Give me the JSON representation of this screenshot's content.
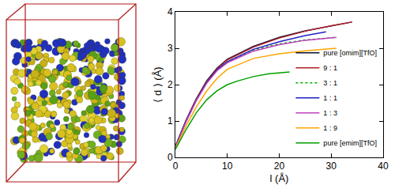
{
  "chart_data": {
    "type": "line",
    "x_label": "l (Å)",
    "y_label": "⟨ d ⟩ (Å)",
    "xlim": [
      0,
      40
    ],
    "xticks": [
      0,
      10,
      20,
      30,
      40
    ],
    "ylim": [
      0,
      4
    ],
    "yticks": [
      0,
      1,
      2,
      3,
      4
    ],
    "grid": false,
    "legend": "lower right",
    "series": [
      {
        "name": "pure [omim][TfO]",
        "color": "#101030",
        "line_style": "solid",
        "x": [
          0,
          2,
          4,
          6,
          8,
          10,
          15,
          20,
          25,
          30,
          34
        ],
        "values": [
          0.3,
          1.0,
          1.6,
          2.1,
          2.45,
          2.7,
          3.05,
          3.3,
          3.48,
          3.62,
          3.72
        ]
      },
      {
        "name": "9 : 1",
        "color": "#b0202a",
        "line_style": "solid",
        "x": [
          0,
          2,
          4,
          6,
          8,
          10,
          15,
          20,
          25,
          30,
          34
        ],
        "values": [
          0.3,
          1.0,
          1.6,
          2.08,
          2.43,
          2.68,
          3.03,
          3.28,
          3.47,
          3.62,
          3.72
        ]
      },
      {
        "name": "3 : 1",
        "color": "#00b000",
        "line_style": "dot",
        "x": [
          0,
          2,
          4,
          6,
          8,
          10,
          15,
          20,
          25,
          31
        ],
        "values": [
          0.3,
          0.98,
          1.58,
          2.06,
          2.4,
          2.63,
          2.95,
          3.12,
          3.23,
          3.3
        ]
      },
      {
        "name": "1 : 1",
        "color": "#2020c0",
        "line_style": "solid",
        "x": [
          0,
          2,
          4,
          6,
          8,
          10,
          15,
          20,
          25,
          29
        ],
        "values": [
          0.3,
          0.98,
          1.57,
          2.05,
          2.4,
          2.63,
          2.97,
          3.18,
          3.35,
          3.45
        ]
      },
      {
        "name": "1 : 3",
        "color": "#c040c0",
        "line_style": "solid",
        "x": [
          0,
          2,
          4,
          6,
          8,
          10,
          15,
          20,
          25,
          31
        ],
        "values": [
          0.28,
          0.96,
          1.55,
          2.03,
          2.38,
          2.6,
          2.92,
          3.1,
          3.22,
          3.3
        ]
      },
      {
        "name": "1 : 9",
        "color": "#ffa500",
        "line_style": "solid",
        "x": [
          0,
          2,
          4,
          6,
          8,
          10,
          15,
          20,
          25,
          31
        ],
        "values": [
          0.25,
          0.85,
          1.38,
          1.82,
          2.17,
          2.42,
          2.72,
          2.85,
          2.93,
          3.0
        ]
      },
      {
        "name": "pure [emim][TfO]",
        "color": "#00a000",
        "line_style": "solid",
        "x": [
          0,
          2,
          4,
          6,
          8,
          10,
          12,
          15,
          18,
          22
        ],
        "values": [
          0.22,
          0.75,
          1.22,
          1.58,
          1.83,
          2.0,
          2.1,
          2.22,
          2.3,
          2.35
        ]
      }
    ]
  }
}
